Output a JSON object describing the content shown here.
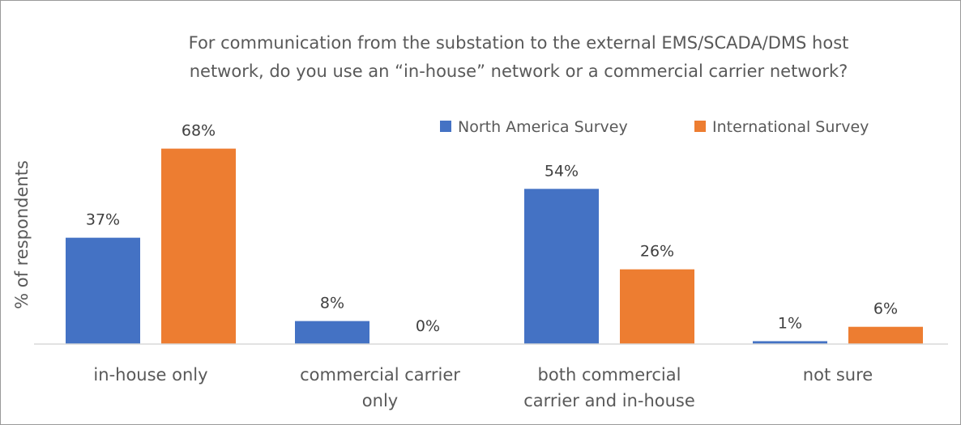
{
  "chart_data": {
    "type": "bar",
    "title": "For communication from the substation to the external EMS/SCADA/DMS host network, do you use an “in-house” network or a commercial carrier network?",
    "title_lines": [
      "For communication from the substation to the external EMS/SCADA/DMS host",
      "network, do you use an “in-house” network or a commercial carrier network?"
    ],
    "ylabel": "% of respondents",
    "xlabel": "",
    "ylim": [
      0,
      70
    ],
    "grid": false,
    "legend_position": "top-right",
    "categories": [
      "in-house only",
      "commercial carrier only",
      "both commercial carrier and in-house",
      "not sure"
    ],
    "category_lines": [
      [
        "in-house only"
      ],
      [
        "commercial carrier",
        "only"
      ],
      [
        "both commercial",
        "carrier and in-house"
      ],
      [
        "not sure"
      ]
    ],
    "series": [
      {
        "name": "North America Survey",
        "color": "#4472c4",
        "values": [
          37,
          8,
          54,
          1
        ],
        "labels": [
          "37%",
          "8%",
          "54%",
          "1%"
        ]
      },
      {
        "name": "International Survey",
        "color": "#ed7d31",
        "values": [
          68,
          0,
          26,
          6
        ],
        "labels": [
          "68%",
          "0%",
          "26%",
          "6%"
        ]
      }
    ]
  }
}
